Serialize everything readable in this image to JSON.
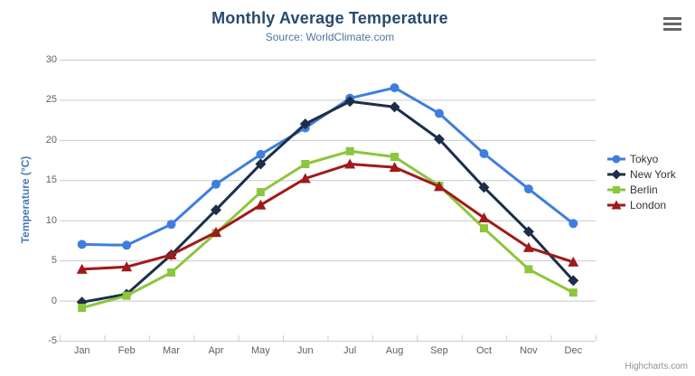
{
  "chart": {
    "title": "Monthly Average Temperature",
    "subtitle": "Source: WorldClimate.com",
    "y_axis_title": "Temperature (°C)",
    "credits": "Highcharts.com"
  },
  "icons": {
    "context_menu": "hamburger-icon"
  },
  "chart_data": {
    "type": "line",
    "title": "Monthly Average Temperature",
    "subtitle": "Source: WorldClimate.com",
    "xlabel": "",
    "ylabel": "Temperature (°C)",
    "categories": [
      "Jan",
      "Feb",
      "Mar",
      "Apr",
      "May",
      "Jun",
      "Jul",
      "Aug",
      "Sep",
      "Oct",
      "Nov",
      "Dec"
    ],
    "series": [
      {
        "name": "Tokyo",
        "color": "#3E7EDF",
        "marker": "circle",
        "values": [
          7.0,
          6.9,
          9.5,
          14.5,
          18.2,
          21.5,
          25.2,
          26.5,
          23.3,
          18.3,
          13.9,
          9.6
        ]
      },
      {
        "name": "New York",
        "color": "#1C2E4A",
        "marker": "diamond",
        "values": [
          -0.2,
          0.8,
          5.7,
          11.3,
          17.0,
          22.0,
          24.8,
          24.1,
          20.1,
          14.1,
          8.6,
          2.5
        ]
      },
      {
        "name": "Berlin",
        "color": "#8CC63C",
        "marker": "square",
        "values": [
          -0.9,
          0.6,
          3.5,
          8.4,
          13.5,
          17.0,
          18.6,
          17.9,
          14.3,
          9.0,
          3.9,
          1.0
        ]
      },
      {
        "name": "London",
        "color": "#A01A1A",
        "marker": "triangle",
        "values": [
          3.9,
          4.2,
          5.7,
          8.5,
          11.9,
          15.2,
          17.0,
          16.6,
          14.2,
          10.3,
          6.6,
          4.8
        ]
      }
    ],
    "ylim": [
      -5,
      30
    ],
    "y_ticks": [
      -5,
      0,
      5,
      10,
      15,
      20,
      25,
      30
    ],
    "grid": true,
    "legend_position": "right",
    "grid_color": "#c9c9c9",
    "axis_line_color": "#c0d0e0"
  }
}
